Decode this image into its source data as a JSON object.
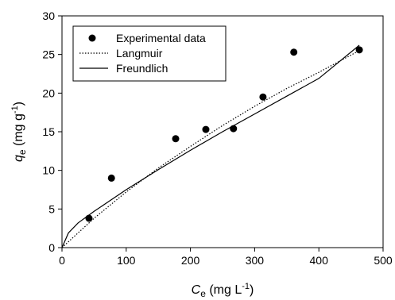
{
  "chart_data": {
    "type": "scatter",
    "title": "",
    "xlabel": {
      "symbol": "C",
      "subscript": "e",
      "units_prefix": "(mg L",
      "units_exp": "-1",
      "units_suffix": ")"
    },
    "ylabel": {
      "symbol": "q",
      "subscript": "e",
      "units_prefix": "(mg g",
      "units_exp": "-1",
      "units_suffix": ")"
    },
    "xlim": [
      0,
      500
    ],
    "ylim": [
      0,
      30
    ],
    "xticks": [
      0,
      100,
      200,
      300,
      400,
      500
    ],
    "yticks": [
      0,
      5,
      10,
      15,
      20,
      25,
      30
    ],
    "grid": false,
    "legend_position": "top-left",
    "series": [
      {
        "name": "Experimental data",
        "kind": "points",
        "color": "#000000",
        "x": [
          42,
          77,
          177,
          224,
          267,
          313,
          361,
          463
        ],
        "y": [
          3.8,
          9.0,
          14.1,
          15.3,
          15.4,
          19.5,
          25.3,
          25.6
        ]
      },
      {
        "name": "Langmuir",
        "kind": "line",
        "style": "dotted",
        "color": "#000000",
        "x": [
          0,
          50,
          100,
          150,
          200,
          250,
          300,
          350,
          400,
          463
        ],
        "y": [
          0,
          3.8,
          7.2,
          10.3,
          13.1,
          15.8,
          18.3,
          20.6,
          22.7,
          25.5
        ]
      },
      {
        "name": "Freundlich",
        "kind": "line",
        "style": "solid",
        "color": "#000000",
        "x": [
          0,
          10,
          25,
          50,
          100,
          150,
          200,
          250,
          300,
          350,
          400,
          463
        ],
        "y": [
          0,
          1.9,
          3.2,
          4.7,
          7.5,
          10.1,
          12.6,
          15.0,
          17.3,
          19.6,
          21.9,
          26.2
        ]
      }
    ]
  }
}
